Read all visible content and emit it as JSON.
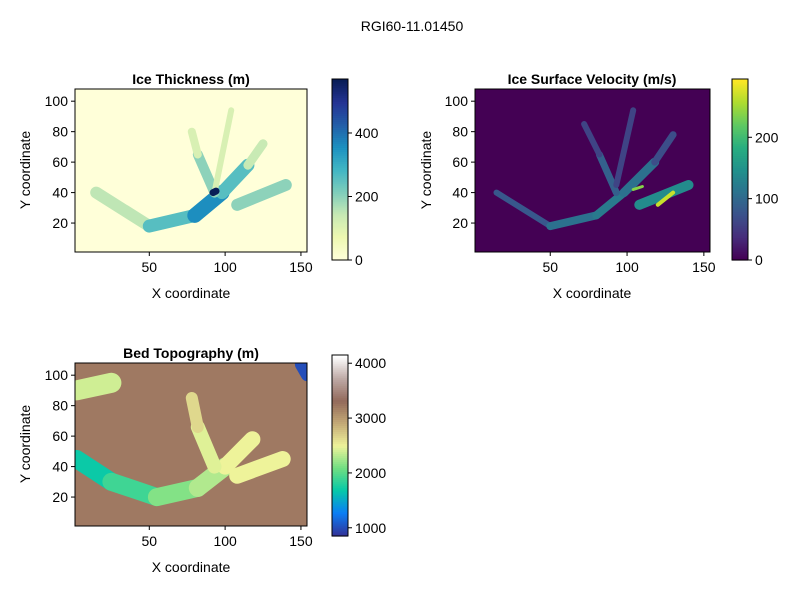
{
  "figure": {
    "title": "RGI60-11.01450"
  },
  "colors": {
    "thickness_cmap": [
      "#ffffd9",
      "#edf8b1",
      "#c7e9b4",
      "#7fcdbb",
      "#41b6c4",
      "#1d91c0",
      "#225ea8",
      "#253494",
      "#081d58"
    ],
    "velocity_cmap": [
      "#440154",
      "#472d7b",
      "#3b528b",
      "#2c728e",
      "#21918c",
      "#28ae80",
      "#5ec962",
      "#addc30",
      "#fde725"
    ],
    "topo_cmap": [
      "#333399",
      "#0b7ef5",
      "#05c8a9",
      "#70df82",
      "#eef39a",
      "#c4aa77",
      "#936a5b",
      "#bda9a5",
      "#ffffff"
    ]
  },
  "chart_data": [
    {
      "type": "heatmap",
      "title": "Ice Thickness (m)",
      "xlabel": "X coordinate",
      "ylabel": "Y coordinate",
      "xlim": [
        1,
        154
      ],
      "ylim": [
        1,
        108
      ],
      "xticks": [
        50,
        100,
        150
      ],
      "yticks": [
        20,
        40,
        60,
        80,
        100
      ],
      "colorbar": {
        "range": [
          0,
          570
        ],
        "ticks": [
          0,
          200,
          400
        ]
      },
      "features": [
        {
          "x0": 15,
          "y0": 40,
          "x1": 50,
          "y1": 18,
          "value": 150
        },
        {
          "x0": 50,
          "y0": 18,
          "x1": 80,
          "y1": 25,
          "value": 260
        },
        {
          "x0": 80,
          "y0": 25,
          "x1": 98,
          "y1": 40,
          "value": 360
        },
        {
          "x0": 98,
          "y0": 40,
          "x1": 115,
          "y1": 58,
          "value": 260
        },
        {
          "x0": 115,
          "y0": 58,
          "x1": 125,
          "y1": 72,
          "value": 140
        },
        {
          "x0": 93,
          "y0": 40,
          "x1": 82,
          "y1": 65,
          "value": 200
        },
        {
          "x0": 82,
          "y0": 65,
          "x1": 78,
          "y1": 80,
          "value": 110
        },
        {
          "x0": 93,
          "y0": 40,
          "x1": 104,
          "y1": 94,
          "value": 110
        },
        {
          "x0": 108,
          "y0": 32,
          "x1": 140,
          "y1": 45,
          "value": 200
        },
        {
          "x0": 92,
          "y0": 40,
          "x1": 94,
          "y1": 41,
          "value": 570
        }
      ]
    },
    {
      "type": "heatmap",
      "title": "Ice Surface Velocity (m/s)",
      "xlabel": "X coordinate",
      "ylabel": "Y coordinate",
      "xlim": [
        1,
        154
      ],
      "ylim": [
        1,
        108
      ],
      "xticks": [
        50,
        100,
        150
      ],
      "yticks": [
        20,
        40,
        60,
        80,
        100
      ],
      "colorbar": {
        "range": [
          0,
          295
        ],
        "ticks": [
          0,
          100,
          200
        ]
      },
      "features": [
        {
          "x0": 15,
          "y0": 40,
          "x1": 50,
          "y1": 18,
          "value": 80
        },
        {
          "x0": 50,
          "y0": 18,
          "x1": 80,
          "y1": 25,
          "value": 110
        },
        {
          "x0": 80,
          "y0": 25,
          "x1": 98,
          "y1": 40,
          "value": 120
        },
        {
          "x0": 98,
          "y0": 40,
          "x1": 118,
          "y1": 60,
          "value": 110
        },
        {
          "x0": 118,
          "y0": 60,
          "x1": 130,
          "y1": 78,
          "value": 70
        },
        {
          "x0": 93,
          "y0": 40,
          "x1": 82,
          "y1": 65,
          "value": 90
        },
        {
          "x0": 82,
          "y0": 65,
          "x1": 72,
          "y1": 85,
          "value": 60
        },
        {
          "x0": 93,
          "y0": 45,
          "x1": 104,
          "y1": 94,
          "value": 60
        },
        {
          "x0": 108,
          "y0": 32,
          "x1": 140,
          "y1": 45,
          "value": 140
        },
        {
          "x0": 120,
          "y0": 32,
          "x1": 130,
          "y1": 40,
          "value": 270
        },
        {
          "x0": 104,
          "y0": 42,
          "x1": 110,
          "y1": 44,
          "value": 240
        }
      ]
    },
    {
      "type": "heatmap",
      "title": "Bed Topography (m)",
      "xlabel": "X coordinate",
      "ylabel": "Y coordinate",
      "xlim": [
        1,
        154
      ],
      "ylim": [
        1,
        108
      ],
      "xticks": [
        50,
        100,
        150
      ],
      "yticks": [
        20,
        40,
        60,
        80,
        100
      ],
      "colorbar": {
        "range": [
          850,
          4150
        ],
        "ticks": [
          1000,
          2000,
          3000,
          4000
        ]
      },
      "features": [
        {
          "x0": 2,
          "y0": 45,
          "x1": 25,
          "y1": 30,
          "value": 1700
        },
        {
          "x0": 25,
          "y0": 30,
          "x1": 55,
          "y1": 20,
          "value": 1900
        },
        {
          "x0": 55,
          "y0": 20,
          "x1": 82,
          "y1": 26,
          "value": 2150
        },
        {
          "x0": 82,
          "y0": 26,
          "x1": 100,
          "y1": 40,
          "value": 2300
        },
        {
          "x0": 100,
          "y0": 40,
          "x1": 118,
          "y1": 58,
          "value": 2500
        },
        {
          "x0": 93,
          "y0": 40,
          "x1": 82,
          "y1": 66,
          "value": 2450
        },
        {
          "x0": 82,
          "y0": 66,
          "x1": 78,
          "y1": 85,
          "value": 2650
        },
        {
          "x0": 108,
          "y0": 34,
          "x1": 138,
          "y1": 45,
          "value": 2500
        },
        {
          "x0": 2,
          "y0": 90,
          "x1": 25,
          "y1": 95,
          "value": 2400
        },
        {
          "x0": 150,
          "y0": 107,
          "x1": 154,
          "y1": 100,
          "value": 1000
        }
      ]
    }
  ]
}
